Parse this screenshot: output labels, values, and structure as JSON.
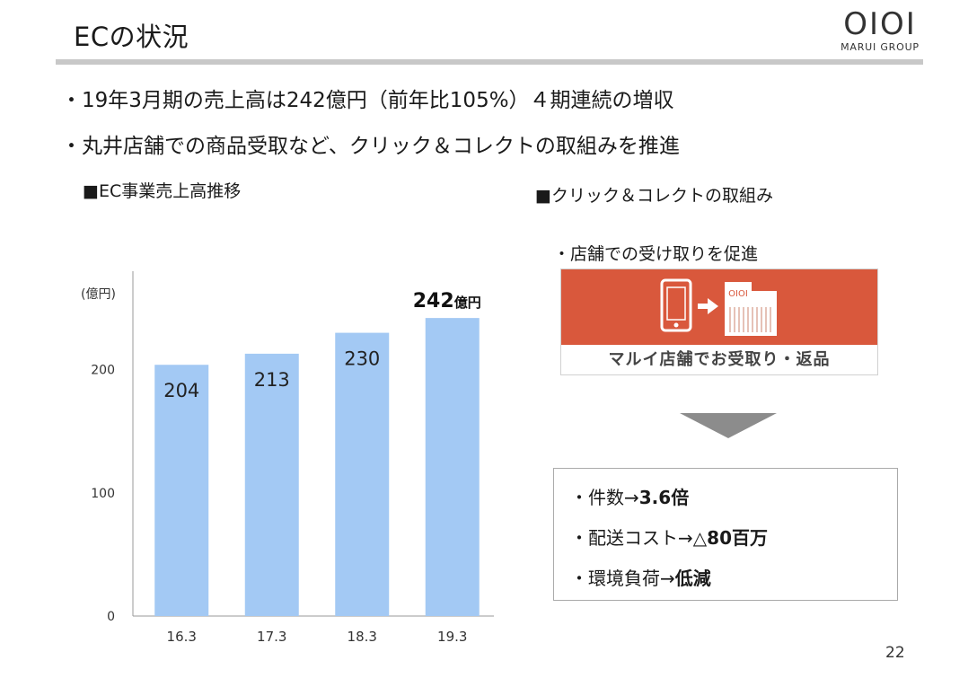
{
  "header": {
    "title": "ECの状況",
    "logo_mark": "OIOI",
    "logo_sub": "MARUI GROUP"
  },
  "bullets": [
    "・19年3月期の売上高は242億円（前年比105%）４期連続の増収",
    "・丸井店舗での商品受取など、クリック＆コレクトの取組みを推進"
  ],
  "left_section": {
    "heading": "■EC事業売上高推移",
    "unit": "(億円)"
  },
  "right_section": {
    "heading": "■クリック＆コレクトの取組み",
    "sub_bullet": "・店舗での受け取りを促進",
    "banner_logo": "OIOI",
    "banner_label": "マルイ店舗でお受取り・返品",
    "results": [
      {
        "prefix": "・件数→",
        "value": "3.6倍"
      },
      {
        "prefix": "・配送コスト→",
        "value": "△80百万"
      },
      {
        "prefix": "・環境負荷→",
        "value": "低減"
      }
    ]
  },
  "chart_data": {
    "type": "bar",
    "categories": [
      "16.3",
      "17.3",
      "18.3",
      "19.3"
    ],
    "values": [
      204,
      213,
      230,
      242
    ],
    "data_labels": [
      "204",
      "213",
      "230",
      ""
    ],
    "highlight": {
      "value": "242",
      "unit": "億円"
    },
    "ylabel": "(億円)",
    "yticks": [
      0,
      100,
      200
    ],
    "ylim": [
      0,
      280
    ],
    "bar_color": "#a3c9f4",
    "grid": false
  },
  "colors": {
    "banner_red": "#d9583c",
    "bar_blue": "#a3c9f4",
    "arrow_gray": "#8c8c8c"
  },
  "footer": {
    "page_number": "22"
  }
}
